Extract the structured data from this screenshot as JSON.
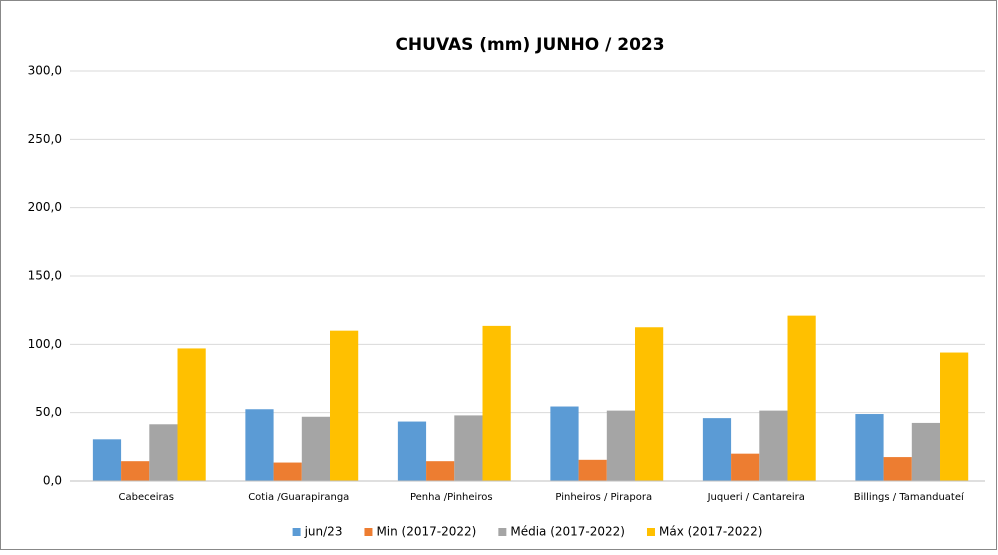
{
  "chart_data": {
    "type": "bar",
    "title": "CHUVAS (mm) JUNHO / 2023",
    "categories": [
      "Cabeceiras",
      "Cotia /Guarapiranga",
      "Penha /Pinheiros",
      "Pinheiros / Pirapora",
      "Juqueri / Cantareira",
      "Billings / Tamanduateí"
    ],
    "series": [
      {
        "name": "jun/23",
        "color": "#5b9bd5",
        "values": [
          30.5,
          52.5,
          43.5,
          54.5,
          46,
          49
        ]
      },
      {
        "name": "Min (2017-2022)",
        "color": "#ed7d31",
        "values": [
          14.5,
          13.5,
          14.5,
          15.5,
          20,
          17.5
        ]
      },
      {
        "name": "Média (2017-2022)",
        "color": "#a5a5a5",
        "values": [
          41.5,
          47,
          48,
          51.5,
          51.5,
          42.5
        ]
      },
      {
        "name": "Máx  (2017-2022)",
        "color": "#ffc000",
        "values": [
          97,
          110,
          113.5,
          112.5,
          121,
          94
        ]
      }
    ],
    "ylim": [
      0,
      300
    ],
    "yticks": [
      {
        "value": 0,
        "label": "0,0"
      },
      {
        "value": 50,
        "label": "50,0"
      },
      {
        "value": 100,
        "label": "100,0"
      },
      {
        "value": 150,
        "label": "150,0"
      },
      {
        "value": 200,
        "label": "200,0"
      },
      {
        "value": 250,
        "label": "250,0"
      },
      {
        "value": 300,
        "label": "300,0"
      }
    ],
    "grid": true,
    "legend": "bottom"
  }
}
